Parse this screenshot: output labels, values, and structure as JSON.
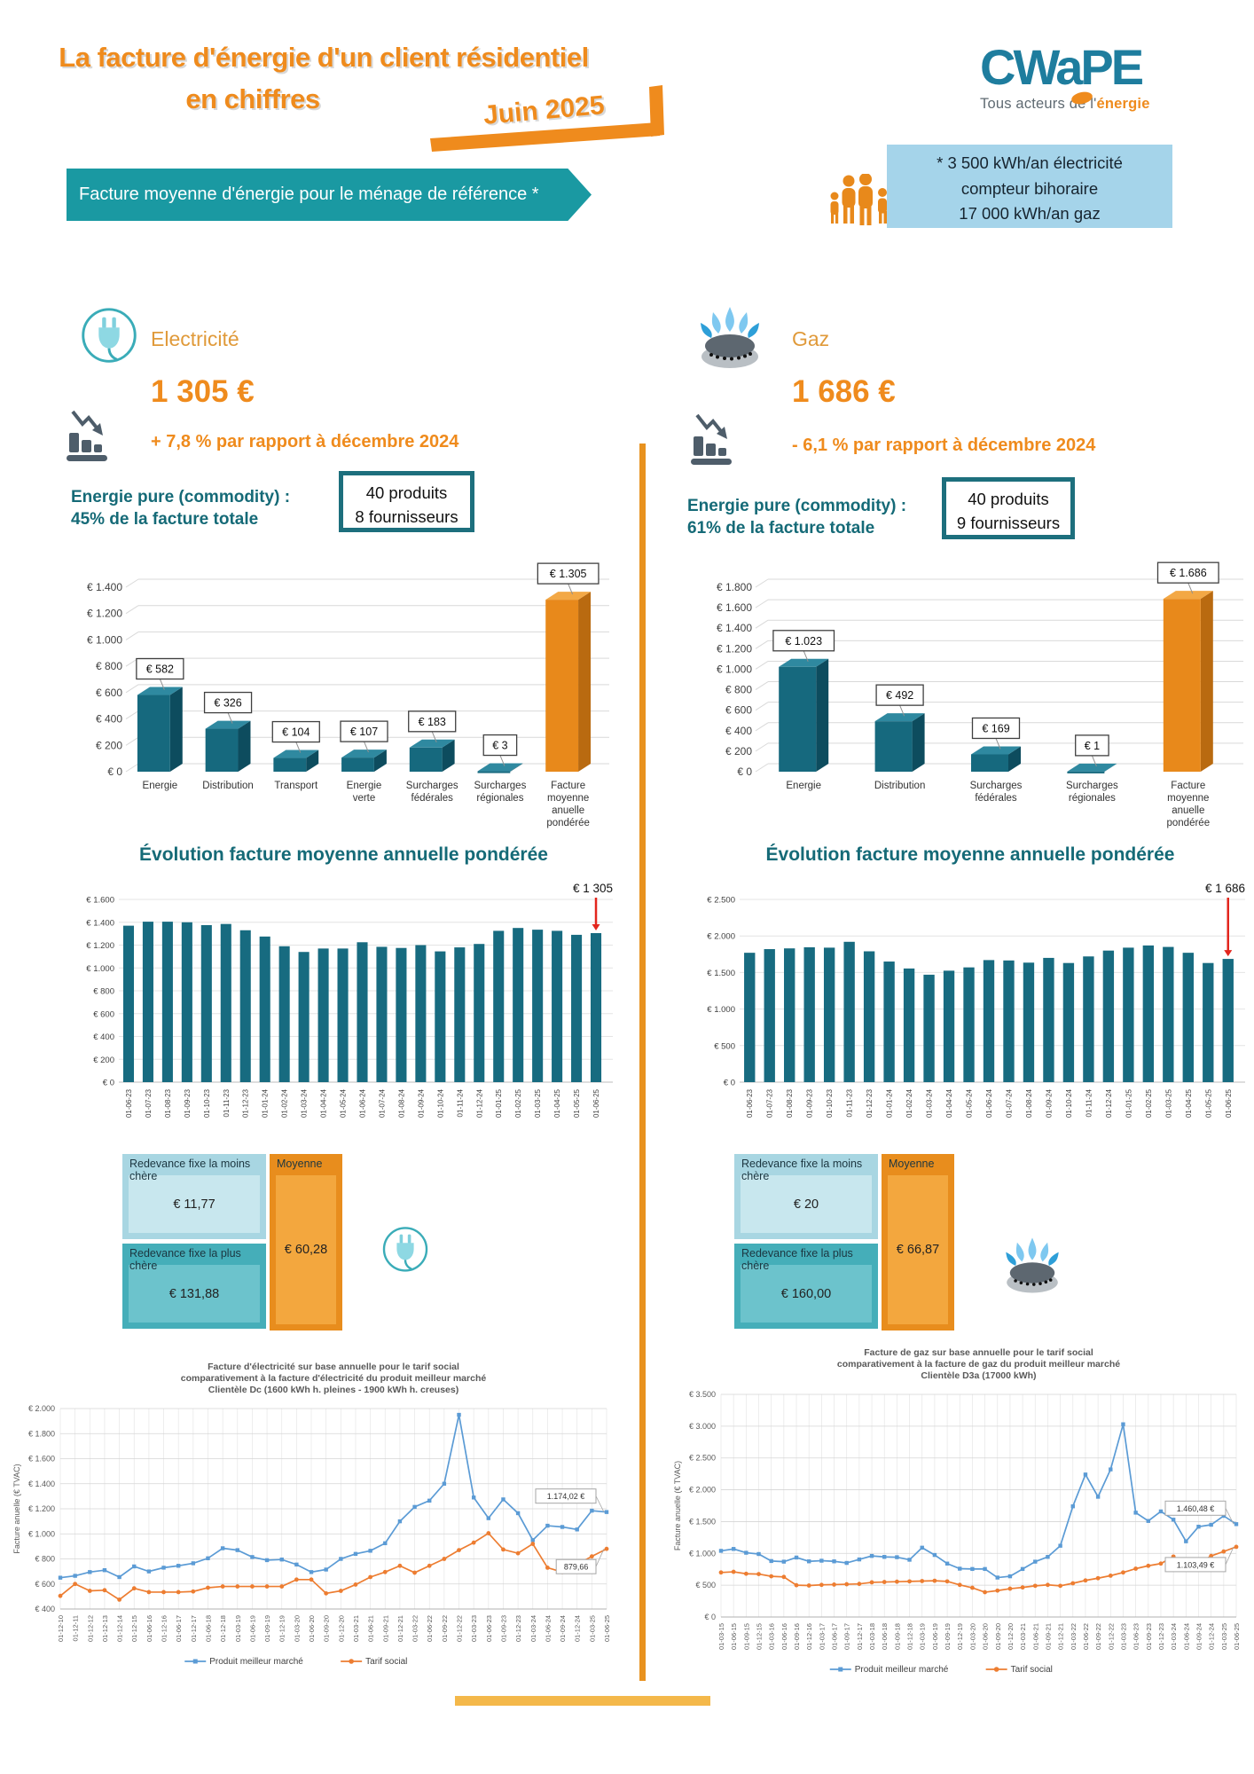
{
  "header": {
    "title_line1": "La facture d'énergie d'un client résidentiel",
    "title_line2": "en chiffres",
    "date_badge": "Juin 2025",
    "logo": {
      "text": "CWaPE",
      "tagline_prefix": "Tous acteurs de l'",
      "tagline_accent": "énergie"
    },
    "reference_note": {
      "line1": "* 3 500 kWh/an électricité",
      "line2": "compteur bihoraire",
      "line3": "17 000 kWh/an gaz"
    },
    "banner": "Facture moyenne d'énergie pour le ménage de référence *"
  },
  "colors": {
    "accent_orange": "#ef8b1d",
    "teal_banner": "#1a99a2",
    "teal_dark": "#156a77",
    "bar_teal_front": "#16697e",
    "bar_teal_top": "#2f89a0",
    "bar_teal_side": "#0d4c5e",
    "bar_orange_front": "#e8891b",
    "bar_orange_top": "#f3a845",
    "bar_orange_side": "#b96a10",
    "evo_bar": "#176b80",
    "red_arrow": "#e3261d",
    "line_blue": "#5b9bd5",
    "line_orange": "#ed7d31",
    "grid": "#d9d9d9",
    "note_blue": "#a5d4ea"
  },
  "electricity": {
    "label": "Electricité",
    "amount": "1 305 €",
    "change": "+ 7,8 %  par rapport à décembre 2024",
    "commodity_line1": "Energie pure (commodity) :",
    "commodity_line2": "45% de la facture totale",
    "products_line1": "40 produits",
    "products_line2": "8 fournisseurs",
    "evolution_title": "Évolution facture moyenne annuelle pondérée",
    "redevance": {
      "cheapest_label": "Redevance fixe la moins chère",
      "cheapest_value": "€ 11,77",
      "priciest_label": "Redevance fixe la plus chère",
      "priciest_value": "€ 131,88",
      "average_label": "Moyenne",
      "average_value": "€ 60,28"
    }
  },
  "gas": {
    "label": "Gaz",
    "amount": "1 686 €",
    "change": "-  6,1 %  par rapport à décembre 2024",
    "commodity_line1": "Energie pure (commodity)  :",
    "commodity_line2": "61% de la facture totale",
    "products_line1": "40 produits",
    "products_line2": "9 fournisseurs",
    "evolution_title": "Évolution facture moyenne annuelle pondérée",
    "redevance": {
      "cheapest_label": "Redevance fixe la moins chère",
      "cheapest_value": "€ 20",
      "priciest_label": "Redevance fixe la plus chère",
      "priciest_value": "€ 160,00",
      "average_label": "Moyenne",
      "average_value": "€ 66,87"
    }
  },
  "chart_data": [
    {
      "id": "elec-breakdown",
      "type": "bar3d",
      "categories": [
        "Energie",
        "Distribution",
        "Transport",
        "Energie\nverte",
        "Surcharges\nfédérales",
        "Surcharges\nrégionales",
        "Facture\nmoyenne\nanuelle\npondérée"
      ],
      "values": [
        582,
        326,
        104,
        107,
        183,
        3,
        1305
      ],
      "value_labels": [
        "€ 582",
        "€ 326",
        "€ 104",
        "€ 107",
        "€ 183",
        "€ 3",
        "€ 1.305"
      ],
      "highlight_last": true,
      "ylim": [
        0,
        1400
      ],
      "ystep": 200
    },
    {
      "id": "gas-breakdown",
      "type": "bar3d",
      "categories": [
        "Energie",
        "Distribution",
        "Surcharges\nfédérales",
        "Surcharges\nrégionales",
        "Facture\nmoyenne\nanuelle\npondérée"
      ],
      "values": [
        1023,
        492,
        169,
        1,
        1686
      ],
      "value_labels": [
        "€ 1.023",
        "€ 492",
        "€ 169",
        "€ 1",
        "€ 1.686"
      ],
      "highlight_last": true,
      "ylim": [
        0,
        1800
      ],
      "ystep": 200
    },
    {
      "id": "elec-evolution",
      "type": "bar",
      "categories": [
        "01-06-23",
        "01-07-23",
        "01-08-23",
        "01-09-23",
        "01-10-23",
        "01-11-23",
        "01-12-23",
        "01-01-24",
        "01-02-24",
        "01-03-24",
        "01-04-24",
        "01-05-24",
        "01-06-24",
        "01-07-24",
        "01-08-24",
        "01-09-24",
        "01-10-24",
        "01-11-24",
        "01-12-24",
        "01-01-25",
        "01-02-25",
        "01-03-25",
        "01-04-25",
        "01-05-25",
        "01-06-25"
      ],
      "values": [
        1370,
        1405,
        1405,
        1400,
        1375,
        1385,
        1330,
        1275,
        1190,
        1140,
        1170,
        1170,
        1225,
        1185,
        1175,
        1200,
        1145,
        1180,
        1210,
        1325,
        1350,
        1335,
        1325,
        1290,
        1305
      ],
      "ylim": [
        0,
        1600
      ],
      "ystep": 200,
      "annotation": "€ 1 305"
    },
    {
      "id": "gas-evolution",
      "type": "bar",
      "categories": [
        "01-06-23",
        "01-07-23",
        "01-08-23",
        "01-09-23",
        "01-10-23",
        "01-11-23",
        "01-12-23",
        "01-01-24",
        "01-02-24",
        "01-03-24",
        "01-04-24",
        "01-05-24",
        "01-06-24",
        "01-07-24",
        "01-08-24",
        "01-09-24",
        "01-10-24",
        "01-11-24",
        "01-12-24",
        "01-01-25",
        "01-02-25",
        "01-03-25",
        "01-04-25",
        "01-05-25",
        "01-06-25"
      ],
      "values": [
        1770,
        1820,
        1830,
        1845,
        1840,
        1920,
        1790,
        1650,
        1555,
        1470,
        1525,
        1570,
        1670,
        1665,
        1635,
        1700,
        1630,
        1720,
        1800,
        1840,
        1870,
        1850,
        1770,
        1630,
        1686
      ],
      "ylim": [
        0,
        2500
      ],
      "ystep": 500,
      "annotation": "€ 1 686"
    },
    {
      "id": "elec-social",
      "type": "line",
      "title_lines": [
        "Facture d'électricité sur base annuelle pour le tarif social",
        "comparativement  à la facture d'électricité du produit meilleur marché",
        "Clientèle Dc (1600 kWh h. pleines - 1900 kWh h. creuses)"
      ],
      "ylabel": "Facture anuelle (€ TVAC)",
      "x": [
        "01-12-10",
        "01-12-11",
        "01-12-12",
        "01-12-13",
        "01-12-14",
        "01-12-15",
        "01-06-16",
        "01-12-16",
        "01-06-17",
        "01-12-17",
        "01-06-18",
        "01-12-18",
        "01-03-19",
        "01-06-19",
        "01-09-19",
        "01-12-19",
        "01-03-20",
        "01-06-20",
        "01-09-20",
        "01-12-20",
        "01-03-21",
        "01-06-21",
        "01-09-21",
        "01-12-21",
        "01-03-22",
        "01-06-22",
        "01-09-22",
        "01-12-22",
        "01-03-23",
        "01-06-23",
        "01-09-23",
        "01-12-23",
        "01-03-24",
        "01-06-24",
        "01-09-24",
        "01-12-24",
        "01-03-25",
        "01-06-25"
      ],
      "ylim": [
        400,
        2000
      ],
      "ystep": 200,
      "series": [
        {
          "name": "Produit meilleur marché",
          "color": "#5b9bd5",
          "marker": "square",
          "end_label": "1.174,02 €",
          "values": [
            650,
            665,
            695,
            710,
            655,
            740,
            700,
            730,
            745,
            765,
            805,
            885,
            870,
            815,
            790,
            795,
            755,
            695,
            715,
            800,
            840,
            865,
            925,
            1100,
            1215,
            1265,
            1400,
            1950,
            1290,
            1125,
            1275,
            1165,
            950,
            1065,
            1055,
            1035,
            1185,
            1174
          ]
        },
        {
          "name": "Tarif social",
          "color": "#ed7d31",
          "marker": "circle",
          "end_label": "879,66",
          "values": [
            505,
            600,
            545,
            550,
            475,
            565,
            535,
            535,
            535,
            540,
            570,
            580,
            580,
            580,
            580,
            580,
            635,
            635,
            525,
            545,
            595,
            655,
            695,
            745,
            690,
            745,
            800,
            870,
            930,
            1005,
            875,
            845,
            920,
            730,
            695,
            755,
            820,
            880
          ]
        }
      ]
    },
    {
      "id": "gas-social",
      "type": "line",
      "title_lines": [
        "Facture de gaz sur base annuelle pour le tarif social",
        "comparativement  à la facture de gaz du produit meilleur marché",
        "Clientèle D3a (17000  kWh)"
      ],
      "ylabel": "Facture anuelle (€ TVAC)",
      "x": [
        "01-03-15",
        "01-06-15",
        "01-09-15",
        "01-12-15",
        "01-03-16",
        "01-06-16",
        "01-09-16",
        "01-12-16",
        "01-03-17",
        "01-06-17",
        "01-09-17",
        "01-12-17",
        "01-03-18",
        "01-06-18",
        "01-09-18",
        "01-12-18",
        "01-03-19",
        "01-06-19",
        "01-09-19",
        "01-12-19",
        "01-03-20",
        "01-06-20",
        "01-09-20",
        "01-12-20",
        "01-03-21",
        "01-06-21",
        "01-09-21",
        "01-12-21",
        "01-03-22",
        "01-06-22",
        "01-09-22",
        "01-12-22",
        "01-03-23",
        "01-06-23",
        "01-09-23",
        "01-12-23",
        "01-03-24",
        "01-06-24",
        "01-09-24",
        "01-12-24",
        "01-03-25",
        "01-06-25"
      ],
      "ylim": [
        0,
        3500
      ],
      "ystep": 500,
      "series": [
        {
          "name": "Produit meilleur marché",
          "color": "#5b9bd5",
          "marker": "square",
          "end_label": "1.460,48 €",
          "values": [
            1040,
            1070,
            1010,
            990,
            880,
            870,
            935,
            875,
            885,
            875,
            850,
            905,
            960,
            945,
            940,
            900,
            1090,
            975,
            840,
            760,
            755,
            755,
            620,
            640,
            755,
            870,
            945,
            1120,
            1740,
            2240,
            1890,
            2320,
            3030,
            1640,
            1510,
            1660,
            1530,
            1190,
            1420,
            1450,
            1590,
            1460
          ]
        },
        {
          "name": "Tarif social",
          "color": "#ed7d31",
          "marker": "circle",
          "end_label": "1.103,49 €",
          "values": [
            700,
            710,
            680,
            675,
            640,
            630,
            500,
            495,
            505,
            510,
            515,
            520,
            545,
            550,
            555,
            560,
            565,
            570,
            560,
            505,
            460,
            390,
            415,
            445,
            465,
            490,
            505,
            490,
            530,
            575,
            610,
            650,
            700,
            760,
            805,
            840,
            950,
            825,
            840,
            960,
            1030,
            1103
          ]
        }
      ]
    }
  ]
}
